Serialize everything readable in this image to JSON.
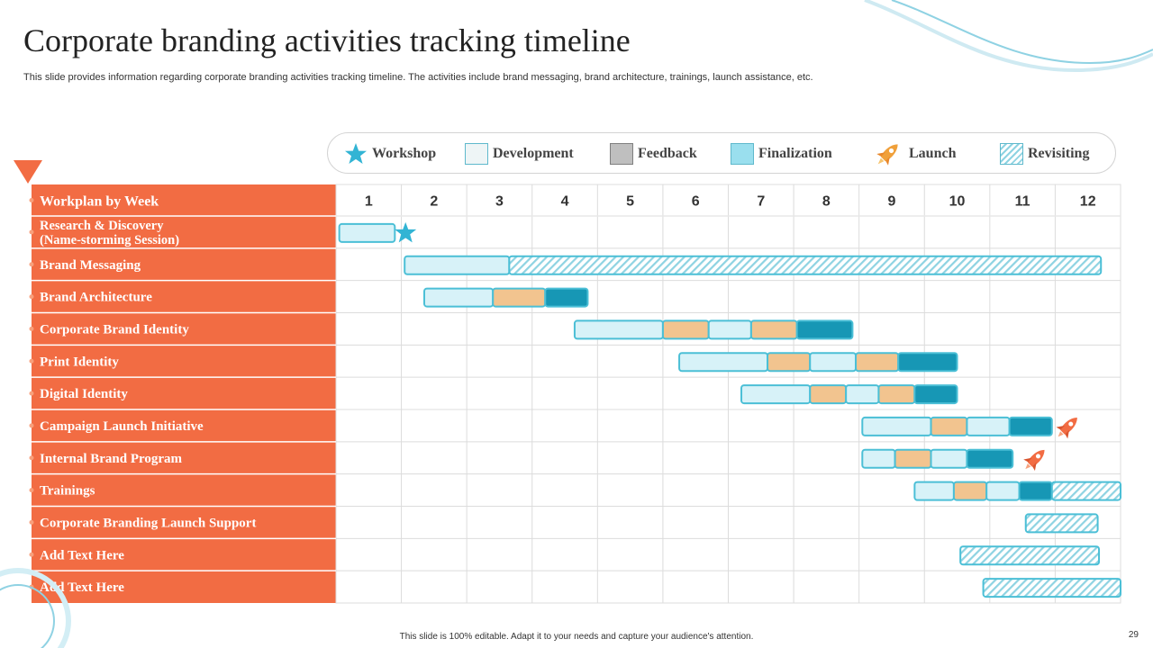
{
  "title": "Corporate branding activities tracking timeline",
  "subtitle": "This slide provides information regarding corporate branding activities tracking timeline. The activities include brand messaging, brand architecture, trainings, launch assistance, etc.",
  "legend": [
    {
      "key": "workshop",
      "label": "Workshop"
    },
    {
      "key": "development",
      "label": "Development"
    },
    {
      "key": "feedback",
      "label": "Feedback"
    },
    {
      "key": "finalization",
      "label": "Finalization"
    },
    {
      "key": "launch",
      "label": "Launch"
    },
    {
      "key": "revisiting",
      "label": "Revisiting"
    }
  ],
  "colors": {
    "accent": "#f26c43",
    "development": "#d7f2f8",
    "feedback": "#f2c48f",
    "finalization": "#bdeaf5",
    "final_dark": "#1797b5",
    "outline": "#4bbfd6",
    "grid": "#dcdcdc",
    "launch": "#f26c43"
  },
  "chart_data": {
    "type": "gantt",
    "header": "Workplan by Week",
    "weeks": [
      "1",
      "2",
      "3",
      "4",
      "5",
      "6",
      "7",
      "8",
      "9",
      "10",
      "11",
      "12"
    ],
    "rows": [
      {
        "label": [
          "Research & Discovery",
          "(Name-storming Session)"
        ],
        "segments": [
          {
            "phase": "development",
            "start": 0.05,
            "end": 0.9
          }
        ],
        "markers": [
          {
            "type": "workshop",
            "at": 1.05
          }
        ]
      },
      {
        "label": [
          "Brand Messaging"
        ],
        "segments": [
          {
            "phase": "development",
            "start": 1.05,
            "end": 2.65
          },
          {
            "phase": "revisiting",
            "start": 2.65,
            "end": 11.7
          }
        ]
      },
      {
        "label": [
          "Brand Architecture"
        ],
        "segments": [
          {
            "phase": "development",
            "start": 1.35,
            "end": 2.4
          },
          {
            "phase": "feedback",
            "start": 2.4,
            "end": 3.2
          },
          {
            "phase": "finalization",
            "start": 3.2,
            "end": 3.85
          }
        ]
      },
      {
        "label": [
          "Corporate Brand Identity"
        ],
        "segments": [
          {
            "phase": "development",
            "start": 3.65,
            "end": 5.0
          },
          {
            "phase": "feedback",
            "start": 5.0,
            "end": 5.7
          },
          {
            "phase": "development",
            "start": 5.7,
            "end": 6.35
          },
          {
            "phase": "feedback",
            "start": 6.35,
            "end": 7.05
          },
          {
            "phase": "finalization",
            "start": 7.05,
            "end": 7.9
          }
        ]
      },
      {
        "label": [
          "Print Identity"
        ],
        "segments": [
          {
            "phase": "development",
            "start": 5.25,
            "end": 6.6
          },
          {
            "phase": "feedback",
            "start": 6.6,
            "end": 7.25
          },
          {
            "phase": "development",
            "start": 7.25,
            "end": 7.95
          },
          {
            "phase": "feedback",
            "start": 7.95,
            "end": 8.6
          },
          {
            "phase": "finalization",
            "start": 8.6,
            "end": 9.5
          }
        ]
      },
      {
        "label": [
          "Digital Identity"
        ],
        "segments": [
          {
            "phase": "development",
            "start": 6.2,
            "end": 7.25
          },
          {
            "phase": "feedback",
            "start": 7.25,
            "end": 7.8
          },
          {
            "phase": "development",
            "start": 7.8,
            "end": 8.3
          },
          {
            "phase": "feedback",
            "start": 8.3,
            "end": 8.85
          },
          {
            "phase": "finalization",
            "start": 8.85,
            "end": 9.5
          }
        ]
      },
      {
        "label": [
          "Campaign Launch Initiative"
        ],
        "segments": [
          {
            "phase": "development",
            "start": 8.05,
            "end": 9.1
          },
          {
            "phase": "feedback",
            "start": 9.1,
            "end": 9.65
          },
          {
            "phase": "development",
            "start": 9.65,
            "end": 10.3
          },
          {
            "phase": "finalization",
            "start": 10.3,
            "end": 10.95
          }
        ],
        "markers": [
          {
            "type": "launch",
            "at": 11.2
          }
        ]
      },
      {
        "label": [
          "Internal Brand Program"
        ],
        "segments": [
          {
            "phase": "development",
            "start": 8.05,
            "end": 8.55
          },
          {
            "phase": "feedback",
            "start": 8.55,
            "end": 9.1
          },
          {
            "phase": "development",
            "start": 9.1,
            "end": 9.65
          },
          {
            "phase": "finalization",
            "start": 9.65,
            "end": 10.35
          }
        ],
        "markers": [
          {
            "type": "launch",
            "at": 10.7
          }
        ]
      },
      {
        "label": [
          "Trainings"
        ],
        "segments": [
          {
            "phase": "development",
            "start": 8.85,
            "end": 9.45
          },
          {
            "phase": "feedback",
            "start": 9.45,
            "end": 9.95
          },
          {
            "phase": "development",
            "start": 9.95,
            "end": 10.45
          },
          {
            "phase": "finalization",
            "start": 10.45,
            "end": 10.95
          },
          {
            "phase": "revisiting",
            "start": 10.95,
            "end": 12.0
          }
        ]
      },
      {
        "label": [
          "Corporate Branding Launch Support"
        ],
        "segments": [
          {
            "phase": "revisiting",
            "start": 10.55,
            "end": 11.65
          }
        ]
      },
      {
        "label": [
          "Add Text Here"
        ],
        "segments": [
          {
            "phase": "revisiting",
            "start": 9.55,
            "end": 11.67
          }
        ]
      },
      {
        "label": [
          "Add Text Here"
        ],
        "segments": [
          {
            "phase": "revisiting",
            "start": 9.9,
            "end": 12.0
          }
        ]
      }
    ]
  },
  "footer": "This slide is 100% editable.  Adapt it to your needs and capture your audience's attention.",
  "page_number": "29"
}
